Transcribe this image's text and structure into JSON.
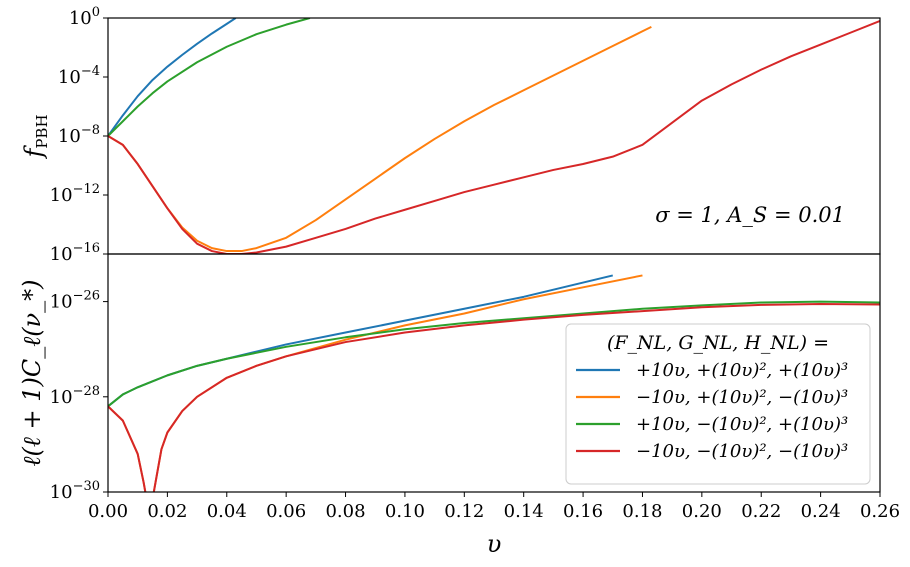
{
  "chart_data": [
    {
      "type": "line",
      "panel": "top",
      "scale": "log",
      "ylabel": "f_PBH",
      "xlabel": "",
      "xlim": [
        0.0,
        0.26
      ],
      "ylim_log10": [
        -16,
        0
      ],
      "y_ticks": [
        {
          "exp": 0,
          "label": "10",
          "sup": "0"
        },
        {
          "exp": -4,
          "label": "10",
          "sup": "−4"
        },
        {
          "exp": -8,
          "label": "10",
          "sup": "−8"
        },
        {
          "exp": -12,
          "label": "10",
          "sup": "−12"
        },
        {
          "exp": -16,
          "label": "10",
          "sup": "−16"
        }
      ],
      "annotation": "σ = 1, A_S = 0.01",
      "series": [
        {
          "name": "blue",
          "color": "#1f77b4",
          "x": [
            0.0,
            0.005,
            0.01,
            0.015,
            0.02,
            0.025,
            0.03,
            0.035,
            0.04,
            0.043
          ],
          "log10_y": [
            -8.0,
            -6.6,
            -5.3,
            -4.2,
            -3.3,
            -2.5,
            -1.75,
            -1.05,
            -0.4,
            0.0
          ]
        },
        {
          "name": "orange",
          "color": "#ff7f0e",
          "x": [
            0.0,
            0.005,
            0.01,
            0.015,
            0.02,
            0.025,
            0.03,
            0.035,
            0.04,
            0.045,
            0.05,
            0.06,
            0.07,
            0.08,
            0.09,
            0.1,
            0.11,
            0.12,
            0.13,
            0.14,
            0.15,
            0.16,
            0.17,
            0.18,
            0.183
          ],
          "log10_y": [
            -8.0,
            -8.6,
            -9.9,
            -11.4,
            -12.9,
            -14.2,
            -15.1,
            -15.6,
            -15.8,
            -15.8,
            -15.6,
            -14.9,
            -13.7,
            -12.3,
            -10.9,
            -9.5,
            -8.2,
            -7.0,
            -5.9,
            -4.9,
            -3.9,
            -2.9,
            -1.9,
            -0.9,
            -0.6
          ]
        },
        {
          "name": "green",
          "color": "#2ca02c",
          "x": [
            0.0,
            0.005,
            0.01,
            0.015,
            0.02,
            0.03,
            0.04,
            0.05,
            0.06,
            0.068
          ],
          "log10_y": [
            -8.0,
            -7.0,
            -6.0,
            -5.1,
            -4.3,
            -3.0,
            -1.95,
            -1.1,
            -0.45,
            0.0
          ]
        },
        {
          "name": "red",
          "color": "#d62728",
          "x": [
            0.0,
            0.005,
            0.01,
            0.015,
            0.02,
            0.025,
            0.03,
            0.035,
            0.04,
            0.045,
            0.05,
            0.06,
            0.07,
            0.08,
            0.09,
            0.1,
            0.11,
            0.12,
            0.13,
            0.14,
            0.15,
            0.16,
            0.17,
            0.18,
            0.19,
            0.2,
            0.21,
            0.22,
            0.23,
            0.24,
            0.25,
            0.26
          ],
          "log10_y": [
            -8.0,
            -8.6,
            -9.9,
            -11.4,
            -12.9,
            -14.3,
            -15.3,
            -15.8,
            -16.0,
            -16.0,
            -15.9,
            -15.5,
            -14.9,
            -14.3,
            -13.6,
            -13.0,
            -12.4,
            -11.8,
            -11.3,
            -10.8,
            -10.3,
            -9.9,
            -9.4,
            -8.6,
            -7.1,
            -5.6,
            -4.5,
            -3.5,
            -2.6,
            -1.8,
            -1.0,
            -0.2
          ]
        }
      ]
    },
    {
      "type": "line",
      "panel": "bottom",
      "scale": "log",
      "ylabel": "ℓ(ℓ + 1)C_ℓ(ν_*)",
      "xlabel": "υ",
      "xlim": [
        0.0,
        0.26
      ],
      "ylim_log10": [
        -30,
        -25
      ],
      "x_ticks": [
        "0.00",
        "0.02",
        "0.04",
        "0.06",
        "0.08",
        "0.10",
        "0.12",
        "0.14",
        "0.16",
        "0.18",
        "0.20",
        "0.22",
        "0.24",
        "0.26"
      ],
      "y_ticks": [
        {
          "exp": -26,
          "label": "10",
          "sup": "−26"
        },
        {
          "exp": -28,
          "label": "10",
          "sup": "−28"
        },
        {
          "exp": -30,
          "label": "10",
          "sup": "−30"
        }
      ],
      "series": [
        {
          "name": "blue",
          "color": "#1f77b4",
          "x": [
            0.0,
            0.005,
            0.01,
            0.02,
            0.03,
            0.04,
            0.05,
            0.06,
            0.08,
            0.1,
            0.12,
            0.14,
            0.16,
            0.17
          ],
          "log10_y": [
            -28.2,
            -27.95,
            -27.8,
            -27.55,
            -27.35,
            -27.2,
            -27.05,
            -26.9,
            -26.65,
            -26.4,
            -26.15,
            -25.9,
            -25.6,
            -25.45
          ]
        },
        {
          "name": "orange",
          "color": "#ff7f0e",
          "x": [
            0.0,
            0.005,
            0.01,
            0.012,
            0.014,
            0.016,
            0.018,
            0.02,
            0.025,
            0.03,
            0.04,
            0.05,
            0.06,
            0.08,
            0.1,
            0.12,
            0.14,
            0.16,
            0.18
          ],
          "log10_y": [
            -28.2,
            -28.5,
            -29.2,
            -29.8,
            -30.5,
            -29.8,
            -29.1,
            -28.75,
            -28.3,
            -28.0,
            -27.6,
            -27.35,
            -27.15,
            -26.8,
            -26.5,
            -26.25,
            -25.95,
            -25.7,
            -25.45
          ]
        },
        {
          "name": "green",
          "color": "#2ca02c",
          "x": [
            0.0,
            0.005,
            0.01,
            0.02,
            0.03,
            0.04,
            0.06,
            0.08,
            0.1,
            0.12,
            0.14,
            0.16,
            0.18,
            0.2,
            0.22,
            0.24,
            0.26
          ],
          "log10_y": [
            -28.2,
            -27.95,
            -27.8,
            -27.55,
            -27.35,
            -27.2,
            -26.95,
            -26.75,
            -26.58,
            -26.45,
            -26.35,
            -26.25,
            -26.15,
            -26.08,
            -26.02,
            -26.0,
            -26.02
          ]
        },
        {
          "name": "red",
          "color": "#d62728",
          "x": [
            0.0,
            0.005,
            0.01,
            0.012,
            0.014,
            0.016,
            0.018,
            0.02,
            0.025,
            0.03,
            0.04,
            0.05,
            0.06,
            0.08,
            0.1,
            0.12,
            0.14,
            0.16,
            0.18,
            0.2,
            0.22,
            0.24,
            0.26
          ],
          "log10_y": [
            -28.2,
            -28.5,
            -29.2,
            -29.8,
            -30.5,
            -29.8,
            -29.1,
            -28.75,
            -28.3,
            -28.0,
            -27.6,
            -27.35,
            -27.15,
            -26.85,
            -26.65,
            -26.5,
            -26.38,
            -26.28,
            -26.2,
            -26.12,
            -26.07,
            -26.05,
            -26.06
          ]
        }
      ],
      "legend": {
        "placement": "bottom-right",
        "title": "(F_NL, G_NL, H_NL) =",
        "entries": [
          {
            "color": "#1f77b4",
            "label": "+10υ, +(10υ)², +(10υ)³"
          },
          {
            "color": "#ff7f0e",
            "label": "−10υ, +(10υ)², −(10υ)³"
          },
          {
            "color": "#2ca02c",
            "label": "+10υ, −(10υ)², +(10υ)³"
          },
          {
            "color": "#d62728",
            "label": "−10υ, −(10υ)², −(10υ)³"
          }
        ]
      }
    }
  ]
}
